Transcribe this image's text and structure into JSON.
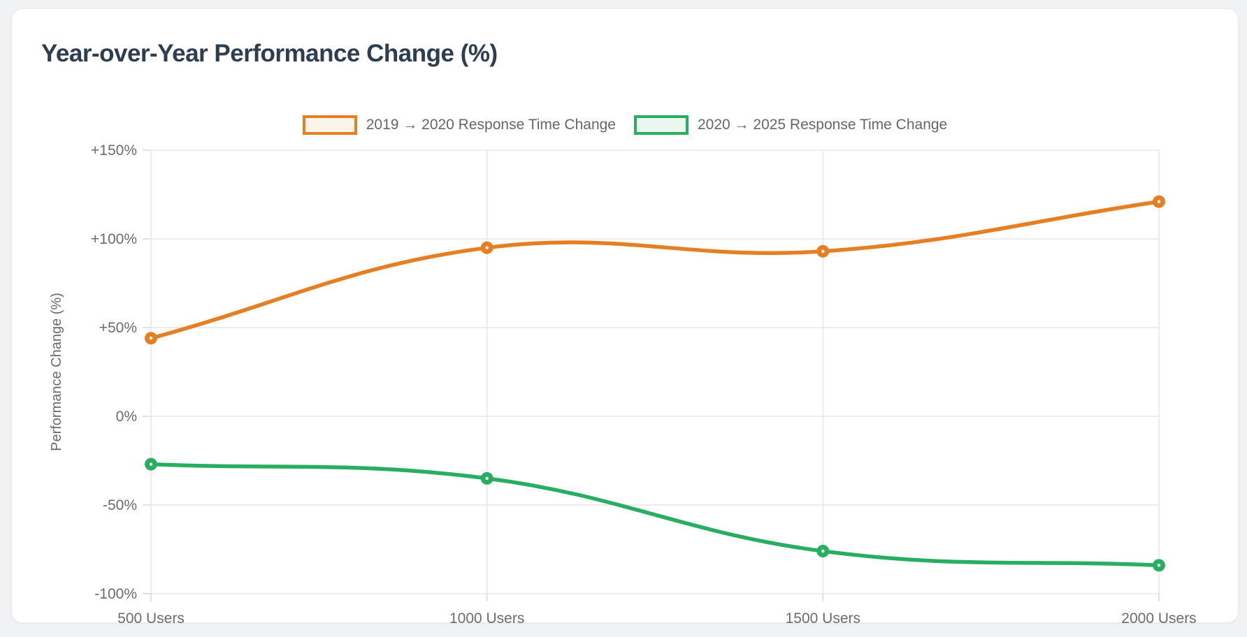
{
  "card": {
    "title": "Year-over-Year Performance Change (%)"
  },
  "chart_data": {
    "type": "line",
    "title": "Year-over-Year Performance Change (%)",
    "categories": [
      "500 Users",
      "1000 Users",
      "1500 Users",
      "2000 Users"
    ],
    "series": [
      {
        "name": "2019 → 2020 Response Time Change",
        "values": [
          44,
          95,
          93,
          121
        ],
        "color": "#E67E22",
        "legend_fill": "#FCF3E9"
      },
      {
        "name": "2020 → 2025 Response Time Change",
        "values": [
          -27,
          -35,
          -76,
          -84
        ],
        "color": "#27AE60",
        "legend_fill": "#E9F7EF"
      }
    ],
    "xlabel": "",
    "ylabel": "Performance Change (%)",
    "ylim": [
      -100,
      150
    ],
    "y_ticks": [
      {
        "label": "+150%",
        "value": 150
      },
      {
        "label": "+100%",
        "value": 100
      },
      {
        "label": "+50%",
        "value": 50
      },
      {
        "label": "0%",
        "value": 0
      },
      {
        "label": "-50%",
        "value": -50
      },
      {
        "label": "-100%",
        "value": -100
      }
    ],
    "grid": true,
    "legend_position": "top",
    "curve_tension": 0.4,
    "colors": {
      "title_text": "#2c3e50",
      "tick_text": "#6b6b6b",
      "gridline": "#e5e6e8",
      "tick_mark": "#d6d7d9",
      "card_bg": "#ffffff",
      "page_bg": "#f1f2f4"
    }
  }
}
